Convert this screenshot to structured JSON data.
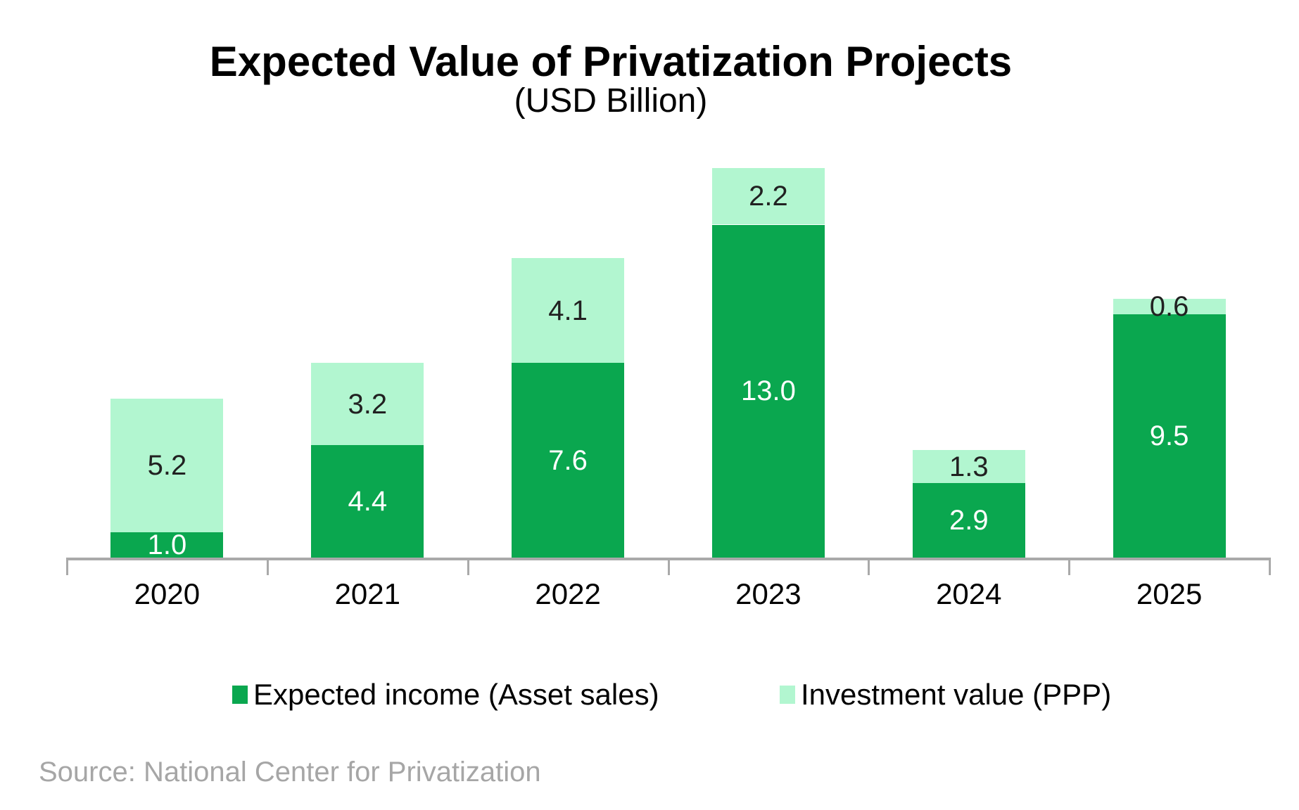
{
  "title": "Expected Value of Privatization Projects",
  "subtitle": "(USD Billion)",
  "source": "Source: National Center for Privatization",
  "colors": {
    "income_green": "#0AA74F",
    "ppp_mint": "#B2F6D0",
    "axis_gray": "#A9A9A9",
    "source_gray": "#A6A6A6",
    "label_on_light": "#212121",
    "label_on_dark": "#FFFFFF"
  },
  "chart_data": {
    "type": "bar",
    "stacked": true,
    "title": "Expected Value of Privatization Projects",
    "subtitle": "(USD Billion)",
    "xlabel": "",
    "ylabel": "",
    "ylim": [
      0,
      16.5
    ],
    "grid": false,
    "legend_position": "bottom",
    "value_labels_decimals": 1,
    "categories": [
      "2020",
      "2021",
      "2022",
      "2023",
      "2024",
      "2025"
    ],
    "series": [
      {
        "name": "Expected income (Asset sales)",
        "color": "#0AA74F",
        "label_color": "#FFFFFF",
        "values": [
          1.0,
          4.4,
          7.6,
          13.0,
          2.9,
          9.5
        ]
      },
      {
        "name": "Investment value (PPP)",
        "color": "#B2F6D0",
        "label_color": "#212121",
        "values": [
          5.2,
          3.2,
          4.1,
          2.2,
          1.3,
          0.6
        ]
      }
    ],
    "totals": [
      6.2,
      7.6,
      11.7,
      15.2,
      4.2,
      10.1
    ]
  }
}
